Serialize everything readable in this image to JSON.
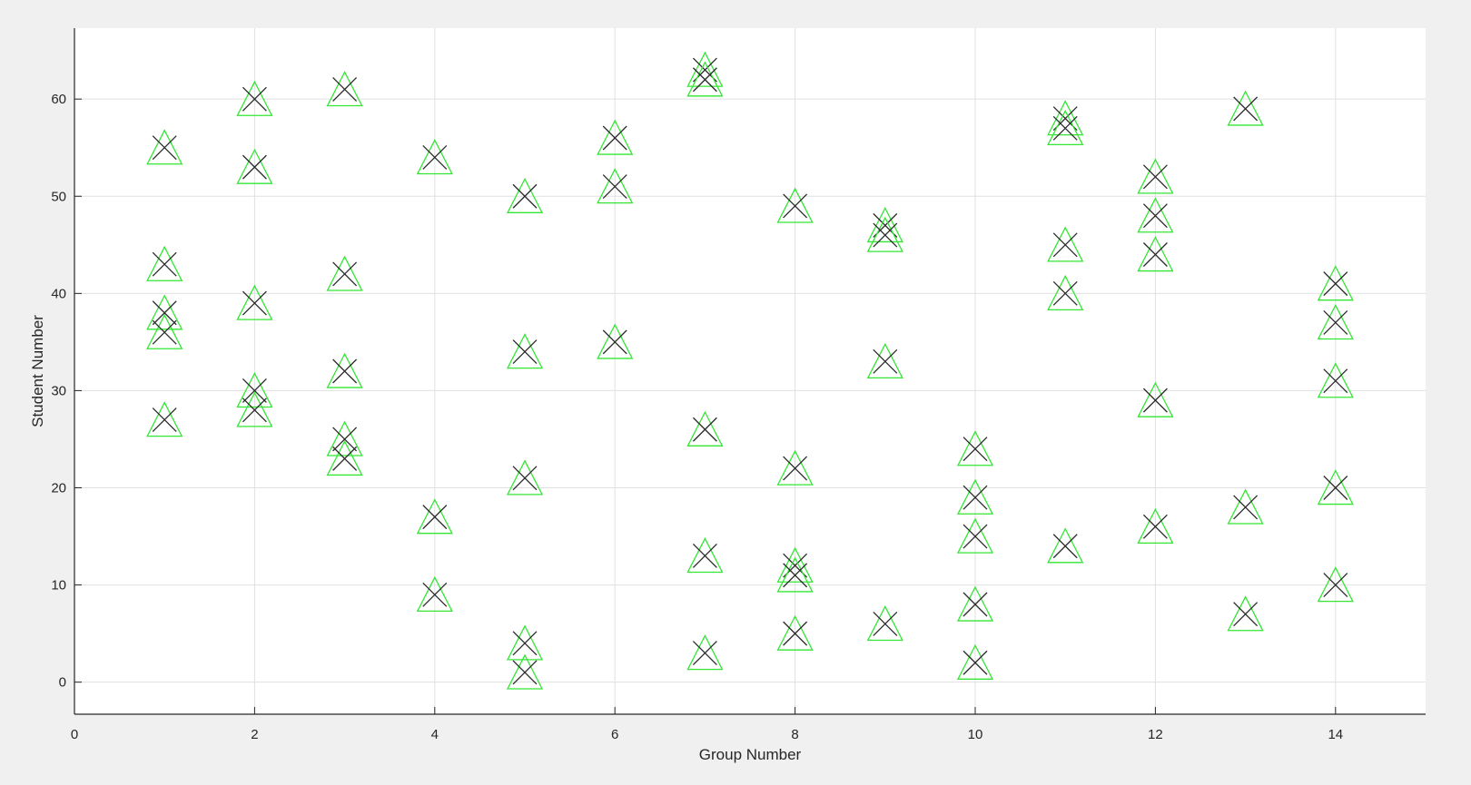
{
  "chart_data": {
    "type": "scatter",
    "title": "",
    "xlabel": "Group Number",
    "ylabel": "Student Number",
    "xlim": [
      0,
      15
    ],
    "ylim": [
      -3.3,
      67.3
    ],
    "xticks": [
      0,
      2,
      4,
      6,
      8,
      10,
      12,
      14
    ],
    "yticks": [
      0,
      10,
      20,
      30,
      40,
      50,
      60
    ],
    "grid": true,
    "legend": "none",
    "colors": {
      "triangle": "#33e633",
      "cross": "#2b2b2b",
      "axes_bg": "#ffffff",
      "figure_bg": "#f0f0f0",
      "grid": "#e0e0e0",
      "axis": "#262626"
    },
    "markers": [
      "triangle",
      "x"
    ],
    "points": [
      {
        "x": 1,
        "y": 55
      },
      {
        "x": 1,
        "y": 43
      },
      {
        "x": 1,
        "y": 38
      },
      {
        "x": 1,
        "y": 36
      },
      {
        "x": 1,
        "y": 27
      },
      {
        "x": 2,
        "y": 60
      },
      {
        "x": 2,
        "y": 53
      },
      {
        "x": 2,
        "y": 39
      },
      {
        "x": 2,
        "y": 30
      },
      {
        "x": 2,
        "y": 28
      },
      {
        "x": 3,
        "y": 61
      },
      {
        "x": 3,
        "y": 42
      },
      {
        "x": 3,
        "y": 32
      },
      {
        "x": 3,
        "y": 25
      },
      {
        "x": 3,
        "y": 23
      },
      {
        "x": 4,
        "y": 54
      },
      {
        "x": 4,
        "y": 17
      },
      {
        "x": 4,
        "y": 9
      },
      {
        "x": 5,
        "y": 50
      },
      {
        "x": 5,
        "y": 34
      },
      {
        "x": 5,
        "y": 21
      },
      {
        "x": 5,
        "y": 4
      },
      {
        "x": 5,
        "y": 1
      },
      {
        "x": 6,
        "y": 56
      },
      {
        "x": 6,
        "y": 51
      },
      {
        "x": 6,
        "y": 35
      },
      {
        "x": 7,
        "y": 63
      },
      {
        "x": 7,
        "y": 62
      },
      {
        "x": 7,
        "y": 26
      },
      {
        "x": 7,
        "y": 13
      },
      {
        "x": 7,
        "y": 3
      },
      {
        "x": 8,
        "y": 49
      },
      {
        "x": 8,
        "y": 22
      },
      {
        "x": 8,
        "y": 12
      },
      {
        "x": 8,
        "y": 11
      },
      {
        "x": 8,
        "y": 5
      },
      {
        "x": 9,
        "y": 47
      },
      {
        "x": 9,
        "y": 46
      },
      {
        "x": 9,
        "y": 33
      },
      {
        "x": 9,
        "y": 6
      },
      {
        "x": 10,
        "y": 24
      },
      {
        "x": 10,
        "y": 19
      },
      {
        "x": 10,
        "y": 15
      },
      {
        "x": 10,
        "y": 8
      },
      {
        "x": 10,
        "y": 2
      },
      {
        "x": 11,
        "y": 58
      },
      {
        "x": 11,
        "y": 57
      },
      {
        "x": 11,
        "y": 45
      },
      {
        "x": 11,
        "y": 40
      },
      {
        "x": 11,
        "y": 14
      },
      {
        "x": 12,
        "y": 52
      },
      {
        "x": 12,
        "y": 48
      },
      {
        "x": 12,
        "y": 44
      },
      {
        "x": 12,
        "y": 29
      },
      {
        "x": 12,
        "y": 16
      },
      {
        "x": 13,
        "y": 59
      },
      {
        "x": 13,
        "y": 18
      },
      {
        "x": 13,
        "y": 7
      },
      {
        "x": 14,
        "y": 41
      },
      {
        "x": 14,
        "y": 37
      },
      {
        "x": 14,
        "y": 31
      },
      {
        "x": 14,
        "y": 20
      },
      {
        "x": 14,
        "y": 10
      }
    ]
  }
}
